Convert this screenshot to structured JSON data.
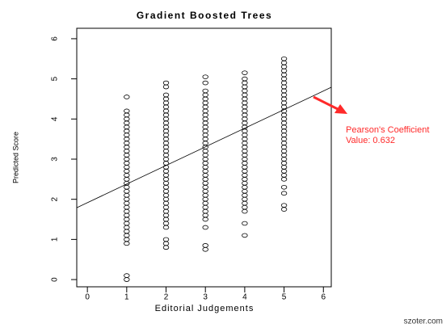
{
  "chart_data": {
    "type": "scatter",
    "title": "Gradient Boosted Trees",
    "xlabel": "Editorial Judgements",
    "ylabel": "Predicted Score",
    "xlim": [
      -0.27,
      6.2
    ],
    "ylim": [
      -0.18,
      6.26
    ],
    "xticks": [
      0,
      1,
      2,
      3,
      4,
      5,
      6
    ],
    "yticks": [
      0,
      1,
      2,
      3,
      4,
      5,
      6
    ],
    "points": [
      {
        "x": 1,
        "y": [
          0,
          0.1,
          0.9,
          1.0,
          1.1,
          1.2,
          1.3,
          1.4,
          1.5,
          1.6,
          1.7,
          1.8,
          1.9,
          2.0,
          2.1,
          2.2,
          2.3,
          2.4,
          2.5,
          2.6,
          2.7,
          2.8,
          2.9,
          3.0,
          3.1,
          3.2,
          3.3,
          3.4,
          3.5,
          3.6,
          3.7,
          3.8,
          3.9,
          4.0,
          4.1,
          4.2,
          4.55
        ]
      },
      {
        "x": 2,
        "y": [
          0.8,
          0.9,
          1.0,
          1.3,
          1.4,
          1.5,
          1.6,
          1.7,
          1.8,
          1.9,
          2.0,
          2.1,
          2.2,
          2.3,
          2.4,
          2.5,
          2.6,
          2.7,
          2.8,
          2.9,
          3.0,
          3.1,
          3.2,
          3.3,
          3.4,
          3.5,
          3.6,
          3.7,
          3.8,
          3.9,
          4.0,
          4.1,
          4.2,
          4.3,
          4.4,
          4.5,
          4.6,
          4.8,
          4.9
        ]
      },
      {
        "x": 3,
        "y": [
          0.75,
          0.85,
          1.3,
          1.5,
          1.6,
          1.7,
          1.8,
          1.9,
          2.0,
          2.1,
          2.2,
          2.3,
          2.4,
          2.5,
          2.6,
          2.7,
          2.8,
          2.9,
          3.0,
          3.1,
          3.2,
          3.3,
          3.4,
          3.5,
          3.6,
          3.7,
          3.8,
          3.9,
          4.0,
          4.1,
          4.2,
          4.3,
          4.4,
          4.5,
          4.6,
          4.7,
          4.9,
          5.05
        ]
      },
      {
        "x": 4,
        "y": [
          1.1,
          1.4,
          1.7,
          1.8,
          1.9,
          2.0,
          2.1,
          2.2,
          2.3,
          2.4,
          2.5,
          2.6,
          2.7,
          2.8,
          2.9,
          3.0,
          3.1,
          3.2,
          3.3,
          3.4,
          3.5,
          3.6,
          3.7,
          3.8,
          3.9,
          4.0,
          4.1,
          4.2,
          4.3,
          4.4,
          4.5,
          4.6,
          4.7,
          4.8,
          4.9,
          5.0,
          5.15
        ]
      },
      {
        "x": 5,
        "y": [
          1.75,
          1.85,
          2.15,
          2.3,
          2.5,
          2.6,
          2.7,
          2.8,
          2.9,
          3.0,
          3.1,
          3.2,
          3.3,
          3.4,
          3.5,
          3.6,
          3.7,
          3.8,
          3.9,
          4.0,
          4.1,
          4.2,
          4.3,
          4.4,
          4.5,
          4.6,
          4.7,
          4.8,
          4.9,
          5.0,
          5.1,
          5.2,
          5.3,
          5.4,
          5.5
        ]
      }
    ],
    "trend": {
      "x": [
        -0.27,
        6.2
      ],
      "y": [
        1.79,
        4.79
      ]
    },
    "annotation": [
      "Pearson's Coefficient",
      "Value: 0.632"
    ],
    "watermark": "szoter.com"
  }
}
